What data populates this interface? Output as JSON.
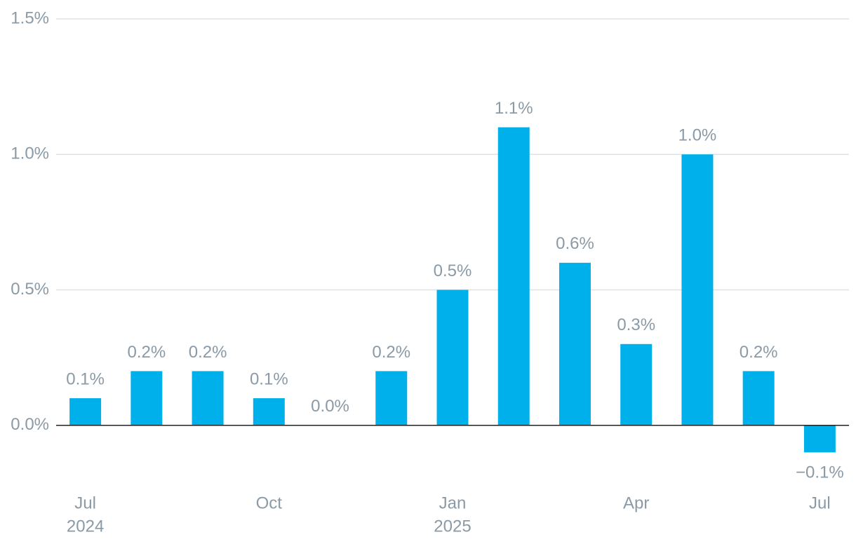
{
  "chart_data": {
    "type": "bar",
    "categories": [
      "Jul",
      null,
      null,
      "Oct",
      null,
      null,
      "Jan",
      null,
      null,
      "Apr",
      null,
      null,
      "Jul"
    ],
    "category_years": [
      "2024",
      null,
      null,
      null,
      null,
      null,
      "2025",
      null,
      null,
      null,
      null,
      null,
      null
    ],
    "values": [
      0.1,
      0.2,
      0.2,
      0.1,
      0.0,
      0.2,
      0.5,
      1.1,
      0.6,
      0.3,
      1.0,
      0.2,
      -0.1
    ],
    "value_labels": [
      "0.1%",
      "0.2%",
      "0.2%",
      "0.1%",
      "0.0%",
      "0.2%",
      "0.5%",
      "1.1%",
      "0.6%",
      "0.3%",
      "1.0%",
      "0.2%",
      "−0.1%"
    ],
    "color": "#00b0ea",
    "ylim": [
      -0.2,
      1.5
    ],
    "yticks": [
      {
        "value": 0,
        "label": "0.0%"
      },
      {
        "value": 0.5,
        "label": "0.5%"
      },
      {
        "value": 1,
        "label": "1.0%"
      },
      {
        "value": 1.5,
        "label": "1.5%"
      }
    ],
    "grid": true
  }
}
